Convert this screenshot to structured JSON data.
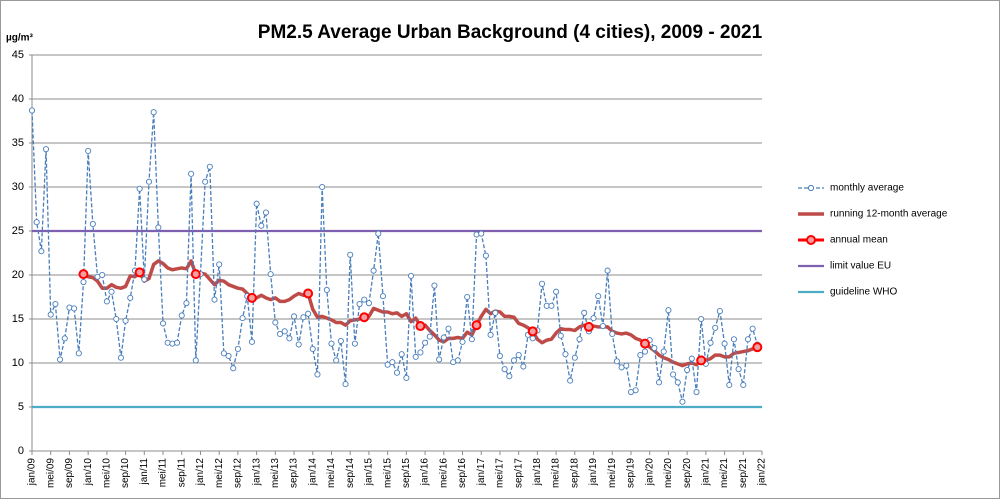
{
  "chart_data": {
    "type": "line",
    "title": "PM2.5 Average Urban Background (4 cities), 2009 - 2021",
    "y_axis_label": "µg/m³",
    "categories": [
      "jan/09",
      null,
      null,
      null,
      "mei/09",
      null,
      null,
      null,
      "sep/09",
      null,
      null,
      null,
      "jan/10",
      null,
      null,
      null,
      "mei/10",
      null,
      null,
      null,
      "sep/10",
      null,
      null,
      null,
      "jan/11",
      null,
      null,
      null,
      "mei/11",
      null,
      null,
      null,
      "sep/11",
      null,
      null,
      null,
      "jan/12",
      null,
      null,
      null,
      "mei/12",
      null,
      null,
      null,
      "sep/12",
      null,
      null,
      null,
      "jan/13",
      null,
      null,
      null,
      "mei/13",
      null,
      null,
      null,
      "sep/13",
      null,
      null,
      null,
      "jan/14",
      null,
      null,
      null,
      "mei/14",
      null,
      null,
      null,
      "sep/14",
      null,
      null,
      null,
      "jan/15",
      null,
      null,
      null,
      "mei/15",
      null,
      null,
      null,
      "sep/15",
      null,
      null,
      null,
      "jan/16",
      null,
      null,
      null,
      "mei/16",
      null,
      null,
      null,
      "sep/16",
      null,
      null,
      null,
      "jan/17",
      null,
      null,
      null,
      "mei/17",
      null,
      null,
      null,
      "sep/17",
      null,
      null,
      null,
      "jan/18",
      null,
      null,
      null,
      "mei/18",
      null,
      null,
      null,
      "sep/18",
      null,
      null,
      null,
      "jan/19",
      null,
      null,
      null,
      "mei/19",
      null,
      null,
      null,
      "sep/19",
      null,
      null,
      null,
      "jan/20",
      null,
      null,
      null,
      "mei/20",
      null,
      null,
      null,
      "sep/20",
      null,
      null,
      null,
      "jan/21",
      null,
      null,
      null,
      "mei/21",
      null,
      null,
      null,
      "sep/21",
      null,
      null,
      null,
      "jan/22"
    ],
    "series": [
      {
        "name": "monthly average",
        "color": "#4a7ebb",
        "style": "dashed-markers",
        "values": [
          38.7,
          26,
          22.7,
          34.3,
          15.5,
          16.7,
          10.4,
          12.8,
          16.3,
          16.2,
          11.1,
          19.2,
          34.1,
          25.8,
          19.8,
          20,
          17,
          18.1,
          15,
          10.6,
          14.8,
          17.4,
          20.5,
          29.8,
          19.5,
          30.6,
          38.5,
          25.4,
          14.5,
          12.3,
          12.2,
          12.3,
          15.4,
          16.8,
          31.5,
          10.3,
          20.1,
          30.6,
          32.3,
          17.2,
          21.2,
          11.1,
          10.8,
          9.4,
          11.6,
          15.1,
          17.6,
          12.4,
          28.1,
          25.6,
          27.1,
          20.1,
          14.6,
          13.3,
          13.6,
          12.8,
          15.3,
          12.1,
          15.2,
          15.6,
          11.6,
          8.7,
          30,
          18.3,
          12.2,
          10.3,
          12.5,
          7.6,
          22.3,
          12.2,
          16.7,
          17.2,
          16.8,
          20.5,
          24.7,
          17.6,
          9.8,
          10.1,
          8.9,
          11,
          8.3,
          19.9,
          10.7,
          11.2,
          12.3,
          13,
          18.8,
          10.4,
          12.9,
          13.9,
          10.1,
          10.3,
          12.4,
          17.5,
          12.7,
          24.6,
          24.7,
          22.2,
          13.2,
          15.7,
          10.8,
          9.3,
          8.5,
          10.3,
          10.9,
          9.6,
          13.2,
          12.8,
          13.7,
          19,
          16.5,
          16.5,
          18.1,
          13.1,
          11,
          8,
          10.6,
          12.7,
          15.7,
          13.6,
          15.1,
          17.6,
          14.2,
          20.5,
          13.3,
          10.2,
          9.5,
          9.7,
          6.7,
          6.9,
          10.9,
          11.3,
          12.6,
          11.7,
          7.8,
          11.3,
          16,
          8.7,
          7.8,
          5.6,
          9.2,
          10.5,
          6.7,
          15,
          9.9,
          12.3,
          14,
          15.9,
          12.2,
          7.5,
          12.7,
          9.3,
          7.5,
          12.7,
          13.9,
          12.1,
          null
        ]
      },
      {
        "name": "running 12-month average",
        "color": "#be4b48",
        "style": "thick",
        "values": [
          null,
          null,
          null,
          null,
          null,
          null,
          null,
          null,
          null,
          null,
          null,
          20.1,
          19.8,
          19.7,
          19.3,
          18.5,
          18.5,
          18.9,
          18.6,
          18.5,
          18.7,
          19.9,
          19.8,
          20.3,
          19.3,
          19.6,
          21.2,
          21.6,
          21.3,
          20.8,
          20.6,
          20.7,
          20.8,
          20.7,
          21.6,
          20.1,
          20.2,
          20.1,
          19.5,
          18.9,
          19.4,
          19.3,
          18.9,
          18.7,
          18.5,
          18.4,
          17.9,
          17.4,
          17.4,
          17.7,
          17.4,
          17.2,
          17.4,
          17.0,
          17.0,
          17.2,
          17.6,
          17.9,
          17.7,
          17.9,
          16.1,
          15.2,
          15.3,
          15.1,
          14.9,
          14.6,
          14.6,
          14.3,
          14.8,
          14.9,
          15.0,
          15.2,
          15.3,
          16.2,
          16.0,
          15.8,
          15.8,
          15.6,
          15.7,
          15.3,
          15.6,
          14.7,
          15.1,
          14.2,
          14.3,
          13.7,
          13.2,
          12.6,
          12.4,
          12.8,
          12.8,
          12.9,
          12.8,
          13.5,
          13.2,
          14.3,
          15.3,
          16.1,
          15.6,
          15.9,
          15.8,
          15.3,
          15.3,
          15.2,
          14.5,
          14.3,
          14.0,
          13.6,
          12.7,
          12.3,
          12.6,
          12.7,
          13.4,
          13.9,
          13.8,
          13.8,
          13.7,
          14.1,
          14.3,
          14.1,
          14.2,
          14.1,
          14.1,
          14.1,
          13.6,
          13.4,
          13.3,
          13.4,
          13.2,
          12.8,
          12.6,
          12.2,
          11.8,
          11.4,
          10.9,
          10.6,
          10.4,
          10.1,
          9.9,
          9.7,
          9.9,
          10.0,
          9.8,
          10.3,
          10.3,
          10.5,
          10.9,
          10.9,
          10.7,
          10.7,
          11.1,
          11.2,
          11.3,
          11.4,
          11.6,
          11.8,
          null
        ]
      },
      {
        "name": "annual mean",
        "color": "#ff0000",
        "style": "markers",
        "values": [
          null,
          null,
          null,
          null,
          null,
          null,
          null,
          null,
          null,
          null,
          null,
          20.1,
          null,
          null,
          null,
          null,
          null,
          null,
          null,
          null,
          null,
          null,
          null,
          20.3,
          null,
          null,
          null,
          null,
          null,
          null,
          null,
          null,
          null,
          null,
          null,
          20.1,
          null,
          null,
          null,
          null,
          null,
          null,
          null,
          null,
          null,
          null,
          null,
          17.4,
          null,
          null,
          null,
          null,
          null,
          null,
          null,
          null,
          null,
          null,
          null,
          17.9,
          null,
          null,
          null,
          null,
          null,
          null,
          null,
          null,
          null,
          null,
          null,
          15.2,
          null,
          null,
          null,
          null,
          null,
          null,
          null,
          null,
          null,
          null,
          null,
          14.2,
          null,
          null,
          null,
          null,
          null,
          null,
          null,
          null,
          null,
          null,
          null,
          14.3,
          null,
          null,
          null,
          null,
          null,
          null,
          null,
          null,
          null,
          null,
          null,
          13.6,
          null,
          null,
          null,
          null,
          null,
          null,
          null,
          null,
          null,
          null,
          null,
          14.1,
          null,
          null,
          null,
          null,
          null,
          null,
          null,
          null,
          null,
          null,
          null,
          12.2,
          null,
          null,
          null,
          null,
          null,
          null,
          null,
          null,
          null,
          null,
          null,
          10.3,
          null,
          null,
          null,
          null,
          null,
          null,
          null,
          null,
          null,
          null,
          null,
          11.8,
          null
        ]
      },
      {
        "name": "limit value EU",
        "color": "#7f5fb0",
        "style": "hline",
        "value": 25
      },
      {
        "name": "guideline WHO",
        "color": "#4bacc6",
        "style": "hline",
        "value": 5
      }
    ],
    "ylim": [
      0,
      45
    ],
    "yticks": [
      0,
      5,
      10,
      15,
      20,
      25,
      30,
      35,
      40,
      45
    ],
    "grid": true,
    "legend": "right"
  }
}
